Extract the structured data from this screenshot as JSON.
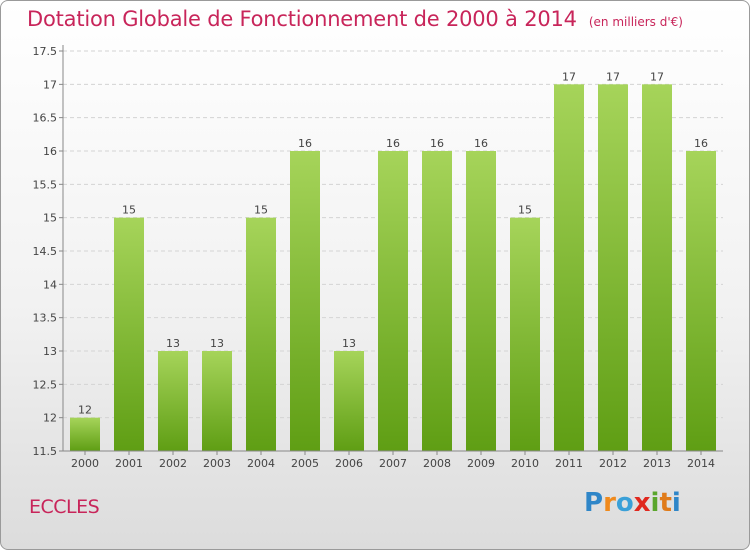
{
  "header": {
    "title": "Dotation Globale de Fonctionnement de 2000 à 2014",
    "subtitle": "(en milliers d'€)"
  },
  "footer": {
    "commune": "ECCLES",
    "logo_letters": [
      "P",
      "r",
      "o",
      "x",
      "i",
      "t",
      "i"
    ],
    "logo_colors": [
      "#2f86c8",
      "#f08a1c",
      "#3aa0d8",
      "#e0281e",
      "#5aa62c",
      "#e07b1a",
      "#2f86c8"
    ]
  },
  "chart_data": {
    "type": "bar",
    "title": "Dotation Globale de Fonctionnement de 2000 à 2014",
    "subtitle": "(en milliers d'€)",
    "xlabel": "",
    "ylabel": "",
    "categories": [
      "2000",
      "2001",
      "2002",
      "2003",
      "2004",
      "2005",
      "2006",
      "2007",
      "2008",
      "2009",
      "2010",
      "2011",
      "2012",
      "2013",
      "2014"
    ],
    "values": [
      12,
      15,
      13,
      13,
      15,
      16,
      13,
      16,
      16,
      16,
      15,
      17,
      17,
      17,
      16
    ],
    "data_labels": [
      "12",
      "15",
      "13",
      "13",
      "15",
      "16",
      "13",
      "16",
      "16",
      "16",
      "15",
      "17",
      "17",
      "17",
      "16"
    ],
    "ylim": [
      11.5,
      17.5
    ],
    "yticks": [
      11.5,
      12,
      12.5,
      13,
      13.5,
      14,
      14.5,
      15,
      15.5,
      16,
      16.5,
      17,
      17.5
    ],
    "ytick_labels": [
      "11.5",
      "12",
      "12.5",
      "13",
      "13.5",
      "14",
      "14.5",
      "15",
      "15.5",
      "16",
      "16.5",
      "17",
      "17.5"
    ],
    "grid": true,
    "legend": "none",
    "colors": {
      "bar_top": "#a6d45a",
      "bar_bottom": "#5f9e14",
      "grid": "#d4d4d4",
      "axis": "#888888",
      "text": "#444444",
      "accent": "#c8255a"
    }
  }
}
